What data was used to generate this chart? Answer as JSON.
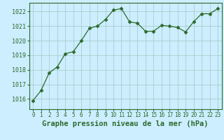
{
  "x": [
    0,
    1,
    2,
    3,
    4,
    5,
    6,
    7,
    8,
    9,
    10,
    11,
    12,
    13,
    14,
    15,
    16,
    17,
    18,
    19,
    20,
    21,
    22,
    23
  ],
  "y": [
    1015.9,
    1016.6,
    1017.8,
    1018.2,
    1019.1,
    1019.25,
    1020.0,
    1020.85,
    1021.0,
    1021.45,
    1022.1,
    1022.2,
    1021.3,
    1021.2,
    1020.65,
    1020.65,
    1021.05,
    1021.0,
    1020.9,
    1020.6,
    1021.3,
    1021.85,
    1021.85,
    1022.2
  ],
  "line_color": "#2d6a2d",
  "marker": "D",
  "marker_size": 2.5,
  "bg_color": "#cceeff",
  "grid_color": "#aacccc",
  "xlabel": "Graphe pression niveau de la mer (hPa)",
  "ylim": [
    1015.3,
    1022.6
  ],
  "xlim": [
    -0.5,
    23.5
  ],
  "yticks": [
    1016,
    1017,
    1018,
    1019,
    1020,
    1021,
    1022
  ],
  "xticks": [
    0,
    1,
    2,
    3,
    4,
    5,
    6,
    7,
    8,
    9,
    10,
    11,
    12,
    13,
    14,
    15,
    16,
    17,
    18,
    19,
    20,
    21,
    22,
    23
  ],
  "tick_color": "#2d6a2d",
  "xlabel_fontsize": 7.5,
  "xlabel_fontweight": "bold",
  "axis_label_color": "#2d6a2d",
  "ytick_fontsize": 6.0,
  "xtick_fontsize": 5.5
}
